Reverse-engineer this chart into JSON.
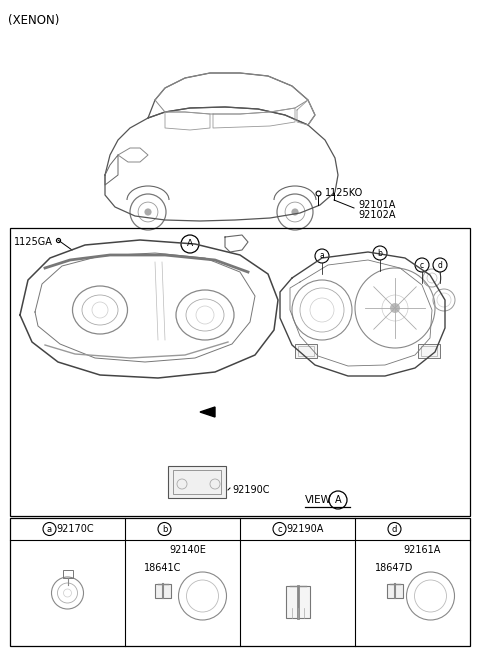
{
  "title": "(XENON)",
  "bg_color": "#ffffff",
  "border_color": "#000000",
  "text_color": "#000000",
  "part_numbers": {
    "xenon": "(XENON)",
    "n1125KO": "1125KO",
    "n92101A": "92101A",
    "n92102A": "92102A",
    "n1125GA": "1125GA",
    "n92190C": "92190C",
    "view_label": "VIEW",
    "view_circle": "A",
    "n92170C": "92170C",
    "n92140E": "92140E",
    "n18641C": "18641C",
    "n92190A": "92190A",
    "n92161A": "92161A",
    "n18647D": "18647D"
  },
  "circle_labels": [
    "a",
    "b",
    "c",
    "d"
  ],
  "bottom_part1": "92170C",
  "bottom_part2": "92140E",
  "bottom_part2b": "18641C",
  "bottom_part3": "92190A",
  "bottom_part4": "92161A",
  "bottom_part4b": "18647D"
}
